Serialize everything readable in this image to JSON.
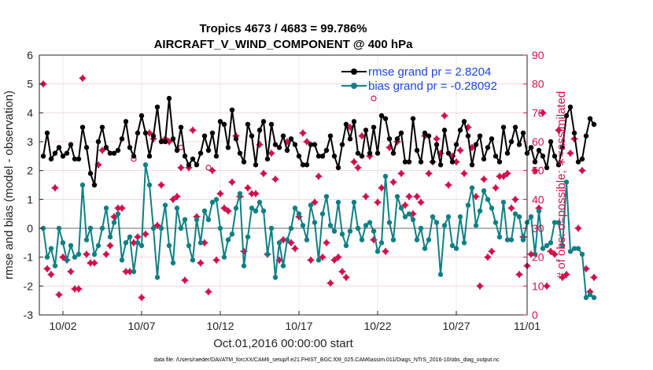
{
  "chart_data": {
    "type": "line",
    "title": "Tropics 4673 / 4683 = 99.786%",
    "subtitle": "AIRCRAFT_V_WIND_COMPONENT @ 400 hPa",
    "xlabel": "Oct.01,2016 00:00:00 start",
    "ylabel": "rmse and bias (model - observation)",
    "y2label": "# of obs: o=possible; ∗=assimilated",
    "footer": "data file: /Users/raeder/DAI/ATM_forcXX/CAM6_setup/f.e21.FHIST_BGC.f09_025.CAM6assim.011/Diags_NTrS_2016-10/obs_diag_output.nc",
    "xlim": [
      0.5,
      31.5
    ],
    "ylim": [
      -3,
      6
    ],
    "y2lim": [
      0,
      90
    ],
    "x_ticks": [
      2,
      7,
      12,
      17,
      22,
      27,
      32
    ],
    "x_tick_labels": [
      "10/02",
      "10/07",
      "10/12",
      "10/17",
      "10/22",
      "10/27",
      "11/01"
    ],
    "y_ticks": [
      -3,
      -2,
      -1,
      0,
      1,
      2,
      3,
      4,
      5,
      6
    ],
    "y_tick_labels": [
      "-3",
      "-2",
      "-1",
      "0",
      "1",
      "2",
      "3",
      "4",
      "5",
      "6"
    ],
    "y2_ticks": [
      0,
      10,
      20,
      30,
      40,
      50,
      60,
      70,
      80,
      90
    ],
    "y2_tick_labels": [
      "0",
      "10",
      "20",
      "30",
      "40",
      "50",
      "60",
      "70",
      "80",
      "90"
    ],
    "x_start": 0.75,
    "x_step": 0.25,
    "series": [
      {
        "name": "rmse grand pr = 2.8204",
        "color": "#000000",
        "values": [
          2.5,
          3.3,
          2.4,
          2.6,
          2.8,
          2.5,
          2.6,
          2.9,
          2.4,
          2.4,
          3.5,
          2.8,
          1.9,
          1.5,
          3.0,
          3.5,
          2.8,
          2.6,
          2.6,
          2.7,
          3.1,
          3.7,
          2.8,
          2.5,
          3.3,
          3.9,
          3.3,
          2.5,
          3.2,
          4.2,
          3.0,
          3.0,
          4.5,
          3.1,
          2.7,
          3.5,
          2.5,
          2.2,
          2.4,
          2.2,
          2.6,
          3.2,
          2.7,
          3.3,
          2.5,
          3.7,
          3.6,
          2.8,
          4.1,
          3.1,
          2.6,
          2.3,
          3.6,
          3.2,
          2.2,
          3.4,
          3.7,
          2.4,
          3.6,
          2.9,
          2.8,
          3.2,
          2.7,
          3.1,
          2.9,
          2.5,
          2.2,
          2.2,
          2.9,
          2.9,
          2.5,
          2.5,
          2.7,
          3.2,
          2.5,
          2.1,
          2.9,
          3.6,
          3.1,
          3.7,
          2.6,
          2.5,
          3.4,
          2.6,
          3.5,
          2.6,
          3.9,
          3.8,
          3.1,
          2.6,
          3.1,
          3.3,
          2.3,
          2.3,
          3.8,
          2.7,
          2.3,
          3.3,
          3.2,
          2.3,
          2.9,
          2.2,
          3.4,
          2.6,
          2.3,
          2.9,
          3.4,
          3.7,
          3.2,
          2.2,
          2.9,
          3.2,
          2.4,
          2.8,
          3.1,
          2.5,
          2.3,
          3.5,
          2.6,
          3.0,
          3.5,
          2.9,
          3.3,
          2.6,
          2.8,
          2.3,
          2.7,
          2.5,
          2.1,
          3.0,
          2.5,
          2.2,
          2.8,
          3.9,
          4.2,
          3.3,
          2.3,
          2.4,
          3.2,
          3.8,
          3.6
        ]
      },
      {
        "name": "bias grand pr = -0.28092",
        "color": "#0f7f84",
        "values": [
          0.0,
          -1.0,
          -0.7,
          -1.3,
          0.0,
          -0.5,
          -1.1,
          -0.6,
          -1.0,
          -0.9,
          1.5,
          -0.4,
          0.0,
          -0.9,
          -0.6,
          0.0,
          0.7,
          -0.3,
          0.2,
          0.5,
          -1.1,
          -0.5,
          -0.3,
          -1.5,
          -0.5,
          -0.6,
          2.2,
          1.5,
          0.0,
          -1.7,
          0.0,
          0.8,
          -0.6,
          -1.2,
          0.7,
          0.0,
          0.3,
          -0.6,
          -1.1,
          0.3,
          -0.5,
          0.6,
          0.3,
          0.9,
          1.0,
          0.0,
          -1.0,
          -0.4,
          -0.2,
          0.7,
          1.2,
          -1.3,
          -0.3,
          0.7,
          0.6,
          0.9,
          0.6,
          -0.9,
          0.0,
          -1.7,
          -0.5,
          -1.3,
          -0.4,
          0.0,
          0.7,
          0.5,
          0.1,
          -0.4,
          0.8,
          0.2,
          -1.1,
          0.5,
          1.1,
          0.1,
          -0.1,
          0.9,
          -0.2,
          -0.6,
          -0.1,
          0.9,
          0.0,
          -0.4,
          0.1,
          0.2,
          -0.1,
          -0.8,
          -0.5,
          1.8,
          0.2,
          -0.4,
          1.1,
          0.7,
          0.4,
          0.5,
          0.3,
          -0.4,
          0.0,
          -0.7,
          -0.4,
          0.4,
          0.2,
          -1.6,
          0.1,
          0.4,
          -0.6,
          -0.7,
          0.4,
          -0.5,
          0.8,
          1.4,
          0.1,
          0.6,
          1.3,
          1.0,
          0.7,
          0.2,
          -0.3,
          0.9,
          -0.4,
          -0.4,
          0.5,
          0.4,
          -0.4,
          0.2,
          0.4,
          -0.9,
          0.6,
          -0.7,
          -0.6,
          -0.5,
          0.2,
          0.2,
          -0.6,
          1.6,
          -0.8,
          -0.7,
          -0.7,
          -0.9,
          -2.4,
          -2.3,
          -2.4
        ]
      }
    ],
    "obs_assimilated": {
      "name": "# of obs assimilated",
      "color": "#d0104c",
      "values": [
        80,
        16,
        14,
        44,
        7,
        20,
        19,
        15,
        9,
        9,
        82,
        21,
        18,
        18,
        52,
        57,
        21,
        24,
        34,
        37,
        37,
        15,
        15,
        25,
        27,
        6,
        28,
        63,
        61,
        31,
        45,
        61,
        60,
        40,
        41,
        51,
        12,
        51,
        64,
        34,
        18,
        25,
        8,
        50,
        19,
        42,
        37,
        36,
        46,
        62,
        41,
        22,
        44,
        42,
        42,
        59,
        49,
        21,
        56,
        47,
        19,
        26,
        60,
        25,
        23,
        34,
        63,
        60,
        19,
        39,
        48,
        20,
        25,
        11,
        19,
        20,
        15,
        13,
        65,
        53,
        51,
        62,
        41,
        55,
        26,
        39,
        44,
        22,
        58,
        46,
        60,
        49,
        38,
        41,
        35,
        41,
        39,
        62,
        49,
        53,
        61,
        56,
        69,
        45,
        55,
        53,
        57,
        49,
        65,
        58,
        41,
        10,
        47,
        20,
        22,
        44,
        48,
        48,
        49,
        37,
        40,
        14,
        27,
        17,
        21,
        50,
        37,
        70,
        10,
        22,
        21,
        64,
        13,
        14,
        56,
        61,
        30,
        50,
        16,
        8,
        13
      ]
    },
    "obs_possible": {
      "name": "# of obs possible",
      "color": "#d0104c",
      "x": [
        6.5,
        9.5,
        11.25,
        21.75
      ],
      "values": [
        54,
        58,
        51,
        75
      ]
    },
    "legend_location": "top-right"
  }
}
